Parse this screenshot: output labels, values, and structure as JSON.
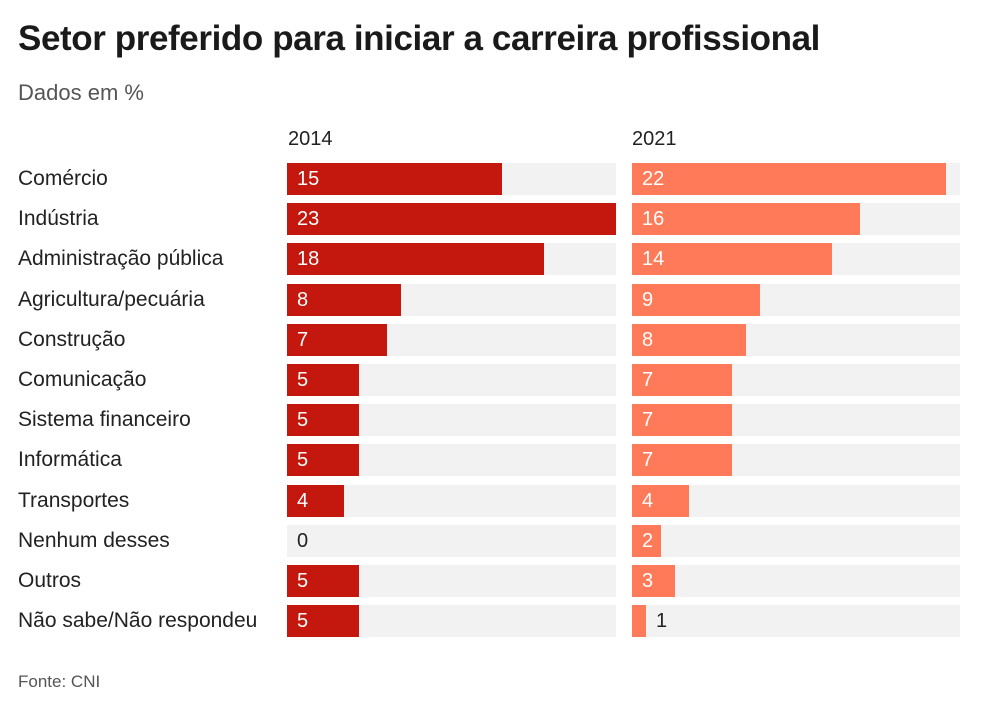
{
  "colors": {
    "bar_2014": "#c4170e",
    "bar_2021": "#ff7a59",
    "track": "#f2f2f2",
    "label_inside": "#ffffff",
    "label_outside": "#222222"
  },
  "chart_data": {
    "type": "bar",
    "orientation": "horizontal",
    "title": "Setor preferido para iniciar a carreira profissional",
    "subtitle": "Dados em %",
    "source": "Fonte: CNI",
    "categories": [
      "Comércio",
      "Indústria",
      "Administração pública",
      "Agricultura/pecuária",
      "Construção",
      "Comunicação",
      "Sistema financeiro",
      "Informática",
      "Transportes",
      "Nenhum desses",
      "Outros",
      "Não sabe/Não respondeu"
    ],
    "series": [
      {
        "name": "2014",
        "values": [
          15,
          23,
          18,
          8,
          7,
          5,
          5,
          5,
          4,
          0,
          5,
          5
        ]
      },
      {
        "name": "2021",
        "values": [
          22,
          16,
          14,
          9,
          8,
          7,
          7,
          7,
          4,
          2,
          3,
          1
        ]
      }
    ],
    "xlim": [
      0,
      23
    ],
    "grid": false,
    "legend": "none",
    "layout": "small-multiples-side-by-side"
  }
}
